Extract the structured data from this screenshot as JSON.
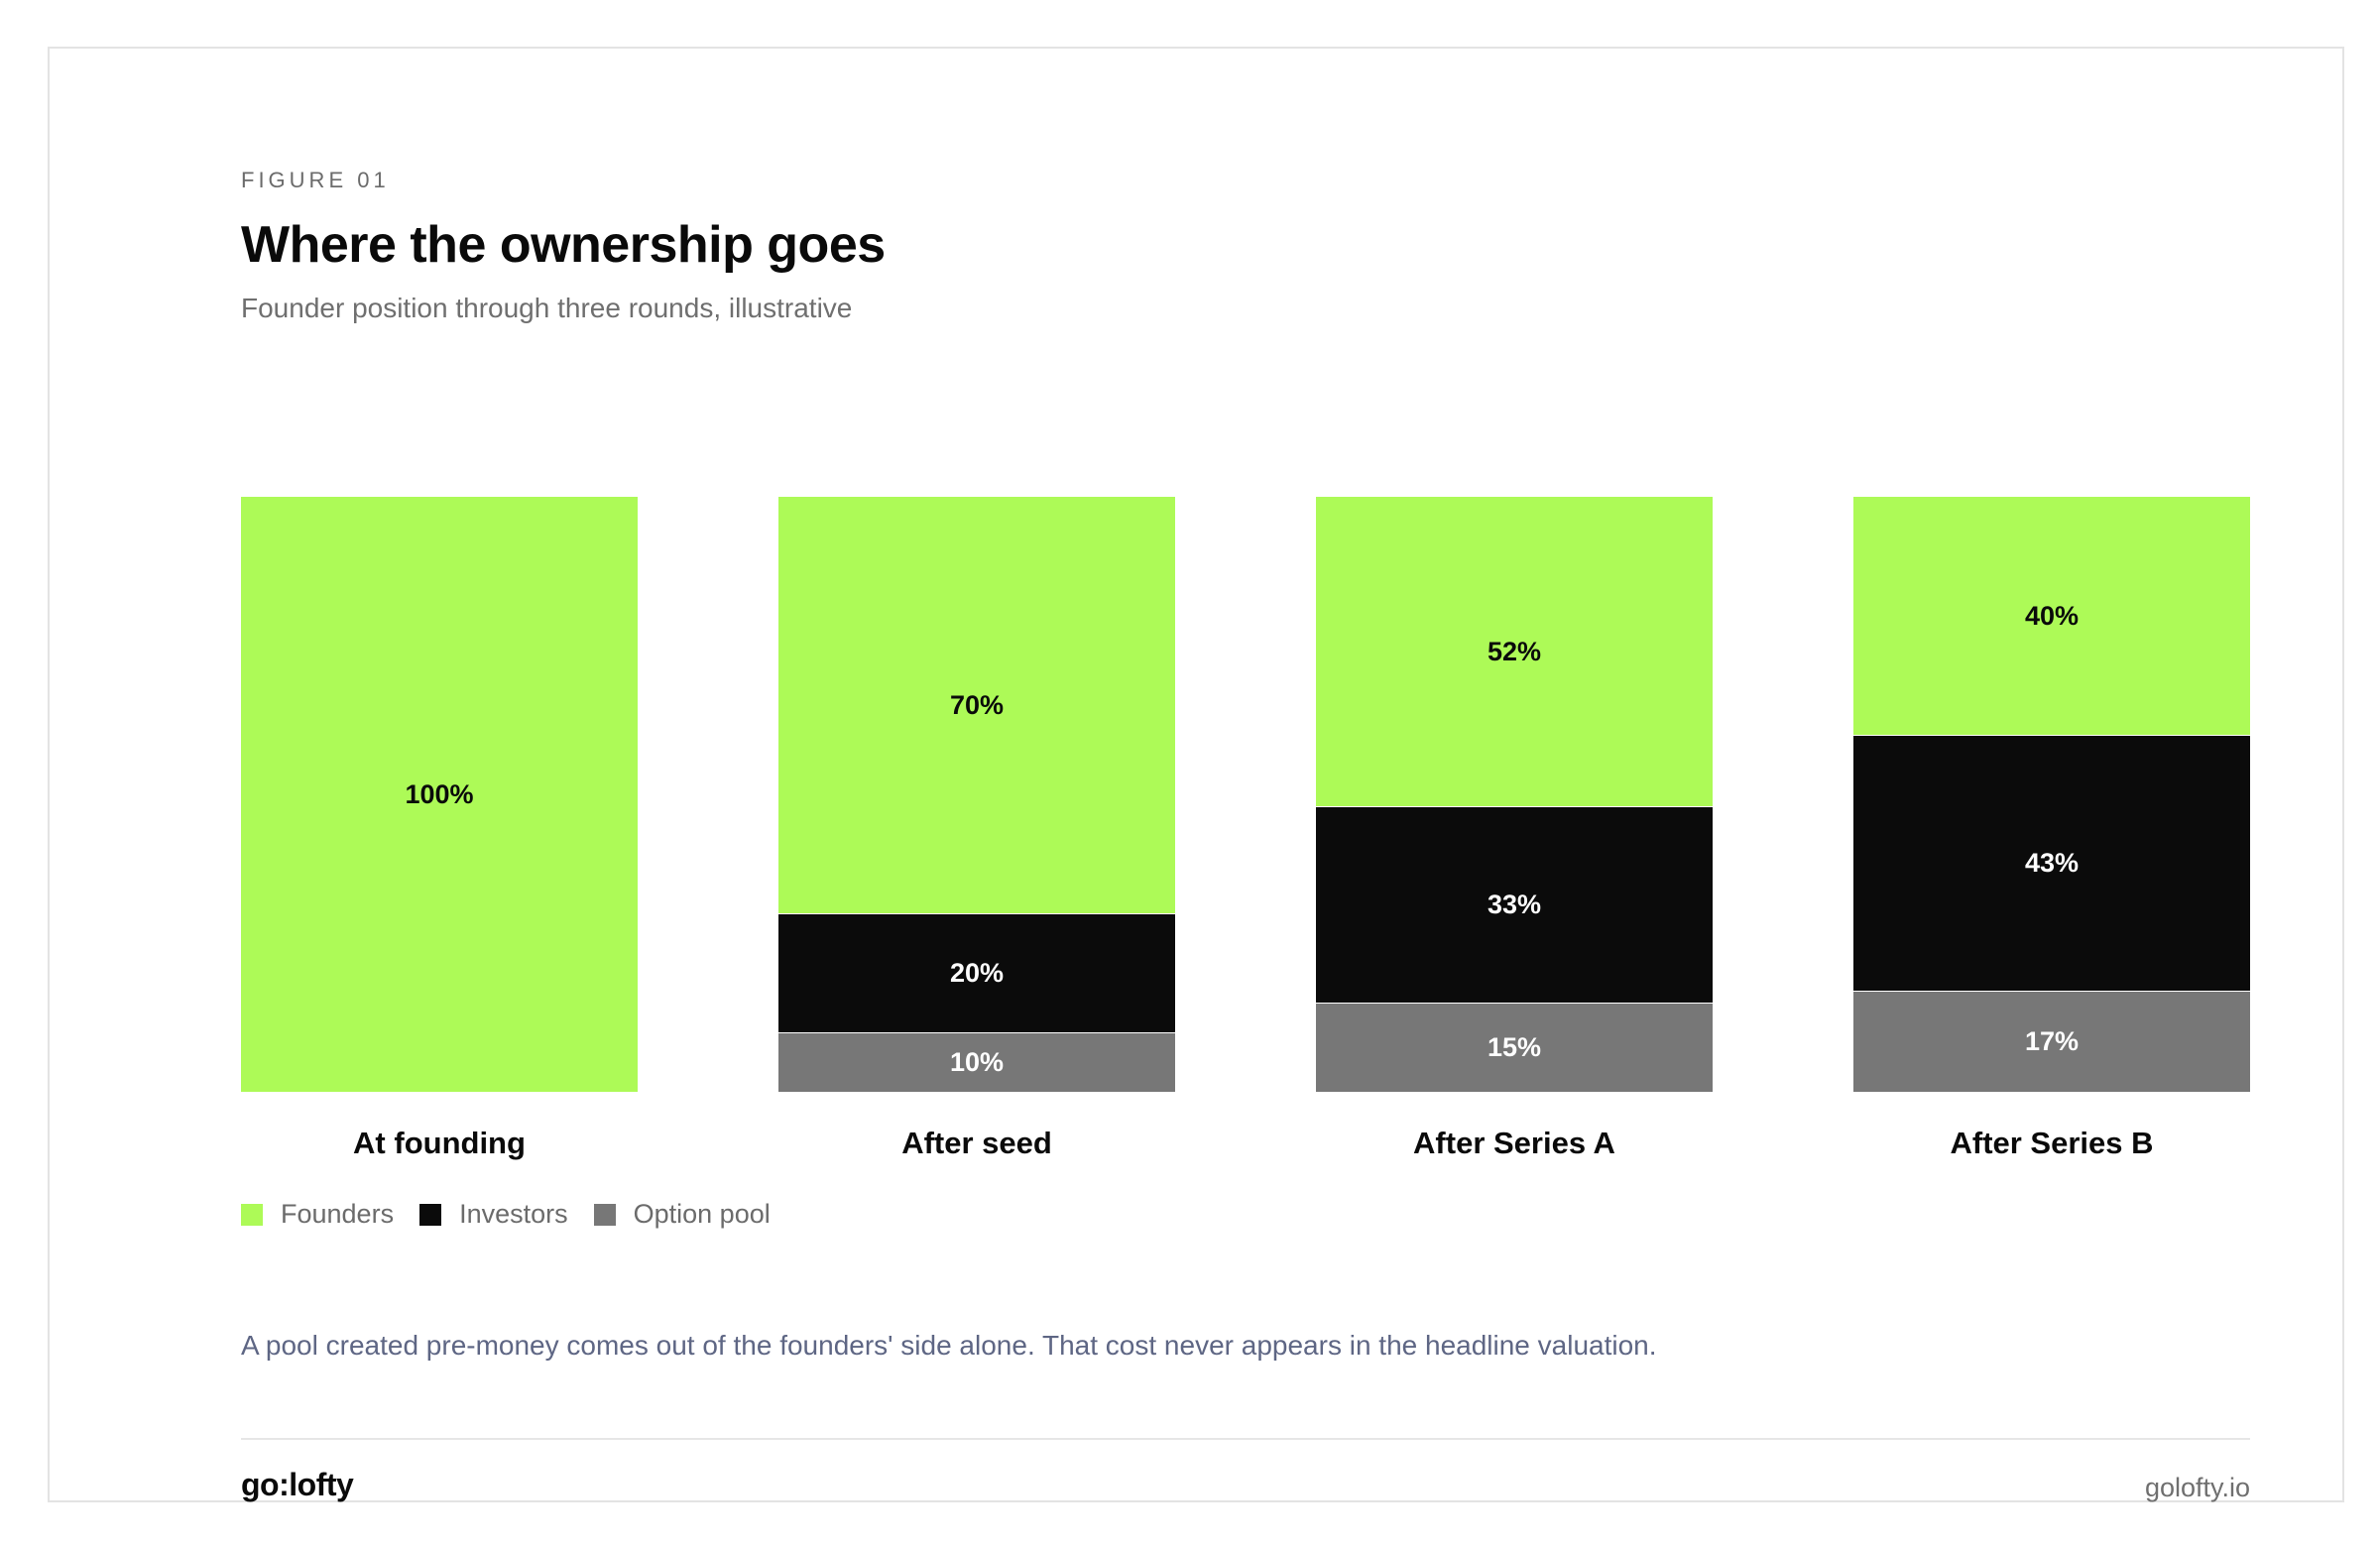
{
  "figure": {
    "eyebrow": "FIGURE 01",
    "title": "Where the ownership goes",
    "subtitle": "Founder position through three rounds, illustrative",
    "caption": "A pool created pre-money comes out of the founders' side alone. That cost never appears in the headline valuation."
  },
  "footer": {
    "brand": "go:lofty",
    "site": "golofty.io"
  },
  "colors": {
    "founders": "#adfa57",
    "investors": "#0b0b0b",
    "option_pool": "#777777",
    "label_on_light": "#0a0a0a",
    "label_on_dark": "#ffffff"
  },
  "chart_data": {
    "type": "bar",
    "stacked": true,
    "orientation": "vertical",
    "categories": [
      "At founding",
      "After seed",
      "After Series A",
      "After Series B"
    ],
    "series": [
      {
        "name": "Founders",
        "color": "#adfa57",
        "values": [
          100,
          70,
          52,
          40
        ],
        "labels": [
          "100%",
          "70%",
          "52%",
          "40%"
        ]
      },
      {
        "name": "Investors",
        "color": "#0b0b0b",
        "values": [
          0,
          20,
          33,
          43
        ],
        "labels": [
          "",
          "20%",
          "33%",
          "43%"
        ]
      },
      {
        "name": "Option pool",
        "color": "#777777",
        "values": [
          0,
          10,
          15,
          17
        ],
        "labels": [
          "",
          "10%",
          "15%",
          "17%"
        ]
      }
    ],
    "ylim": [
      0,
      100
    ],
    "unit": "%",
    "grid": false,
    "axes_visible": false,
    "legend": {
      "position": "bottom-left",
      "entries": [
        "Founders",
        "Investors",
        "Option pool"
      ]
    }
  }
}
